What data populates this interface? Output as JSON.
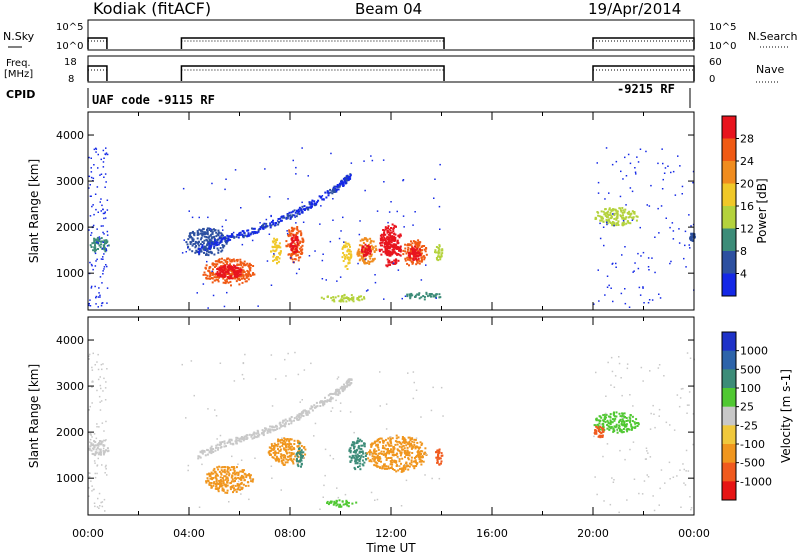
{
  "header": {
    "station": "Kodiak (fitACF)",
    "beam": "Beam 04",
    "date": "19/Apr/2014"
  },
  "strips": {
    "nsky_label": "N.Sky",
    "nsky_ticks": [
      "10^5",
      "10^0"
    ],
    "nsearch_label": "N.Search",
    "nsearch_ticks": [
      "10^5",
      "10^0"
    ],
    "freq_label_1": "Freq.",
    "freq_label_2": "[MHz]",
    "freq_ticks": [
      "18",
      "8"
    ],
    "nave_label": "Nave",
    "nave_ticks": [
      "60",
      "0"
    ],
    "cpid_label": "CPID",
    "cpid_text_1": "UAF code -9115 RF",
    "cpid_text_2": "-9215 RF"
  },
  "panels": {
    "ylabel": "Slant Range [km]",
    "yticks": [
      "4000",
      "3000",
      "2000",
      "1000"
    ],
    "xticks": [
      "00:00",
      "04:00",
      "08:00",
      "12:00",
      "16:00",
      "20:00",
      "00:00"
    ],
    "xlabel": "Time UT"
  },
  "power_scale": {
    "label": "Power [dB]",
    "ticks": [
      "28",
      "24",
      "20",
      "16",
      "12",
      "8",
      "4"
    ],
    "colors": [
      "#e8141e",
      "#f05a14",
      "#f08c1e",
      "#f0c828",
      "#b4d23c",
      "#3c8c78",
      "#2d50a0",
      "#1428e6"
    ]
  },
  "velocity_scale": {
    "label": "Velocity [m s-1]",
    "ticks": [
      "1000",
      "500",
      "100",
      "25",
      "-25",
      "-100",
      "-500",
      "-1000"
    ],
    "colors": [
      "#1e32c8",
      "#2d64aa",
      "#3c8c78",
      "#50c832",
      "#c8c8c8",
      "#f0c83c",
      "#f0961e",
      "#f05a1e",
      "#e61414"
    ]
  },
  "chart_data": {
    "type": "heatmap",
    "x_range_hours": [
      0,
      24
    ],
    "y_range_km": [
      200,
      4500
    ],
    "operating_intervals_hours": [
      [
        0,
        0.75
      ],
      [
        3.7,
        14.1
      ],
      [
        20.0,
        24.0
      ]
    ],
    "power_features": [
      {
        "t0": 0.0,
        "t1": 0.8,
        "r0": 1450,
        "r1": 1800,
        "level": 2
      },
      {
        "t0": 3.8,
        "t1": 5.5,
        "r0": 1400,
        "r1": 2000,
        "level": 1
      },
      {
        "t0": 4.5,
        "t1": 6.6,
        "r0": 750,
        "r1": 1350,
        "level": 6
      },
      {
        "t0": 7.2,
        "t1": 7.6,
        "r0": 1200,
        "r1": 1800,
        "level": 4
      },
      {
        "t0": 7.8,
        "t1": 8.5,
        "r0": 1250,
        "r1": 2050,
        "level": 6
      },
      {
        "t0": 10.0,
        "t1": 10.4,
        "r0": 1100,
        "r1": 1700,
        "level": 4
      },
      {
        "t0": 10.6,
        "t1": 11.4,
        "r0": 1200,
        "r1": 1800,
        "level": 5
      },
      {
        "t0": 11.5,
        "t1": 12.4,
        "r0": 1150,
        "r1": 2100,
        "level": 7
      },
      {
        "t0": 12.4,
        "t1": 13.4,
        "r0": 1150,
        "r1": 1750,
        "level": 6
      },
      {
        "t0": 13.7,
        "t1": 14.0,
        "r0": 1300,
        "r1": 1650,
        "level": 3
      },
      {
        "t0": 20.0,
        "t1": 21.8,
        "r0": 2050,
        "r1": 2450,
        "level": 3
      },
      {
        "t0": 9.2,
        "t1": 11.0,
        "r0": 400,
        "r1": 550,
        "level": 3
      },
      {
        "t0": 12.5,
        "t1": 14.0,
        "r0": 450,
        "r1": 600,
        "level": 2
      },
      {
        "t0": 23.8,
        "t1": 24.0,
        "r0": 1700,
        "r1": 1900,
        "level": 1
      }
    ],
    "power_arc_points": [
      [
        4.3,
        1500
      ],
      [
        5.3,
        1750
      ],
      [
        6.3,
        1900
      ],
      [
        7.3,
        2100
      ],
      [
        8.3,
        2350
      ],
      [
        9.2,
        2650
      ],
      [
        10.0,
        2950
      ],
      [
        10.4,
        3150
      ]
    ],
    "velocity_features": [
      {
        "t0": 0.0,
        "t1": 0.8,
        "r0": 1500,
        "r1": 1850,
        "color_index": 4
      },
      {
        "t0": 4.6,
        "t1": 6.5,
        "r0": 700,
        "r1": 1300,
        "color_index": 6
      },
      {
        "t0": 7.1,
        "t1": 8.6,
        "r0": 1300,
        "r1": 1900,
        "color_index": 6
      },
      {
        "t0": 8.2,
        "t1": 8.5,
        "r0": 1200,
        "r1": 1800,
        "color_index": 2
      },
      {
        "t0": 10.3,
        "t1": 11.0,
        "r0": 1200,
        "r1": 1900,
        "color_index": 2
      },
      {
        "t0": 11.0,
        "t1": 13.4,
        "r0": 1150,
        "r1": 1950,
        "color_index": 6
      },
      {
        "t0": 9.3,
        "t1": 10.6,
        "r0": 400,
        "r1": 550,
        "color_index": 3
      },
      {
        "t0": 20.0,
        "t1": 21.8,
        "r0": 2000,
        "r1": 2450,
        "color_index": 3
      },
      {
        "t0": 20.0,
        "t1": 20.4,
        "r0": 1850,
        "r1": 2200,
        "color_index": 7
      },
      {
        "t0": 13.7,
        "t1": 14.0,
        "r0": 1300,
        "r1": 1650,
        "color_index": 7
      }
    ]
  }
}
